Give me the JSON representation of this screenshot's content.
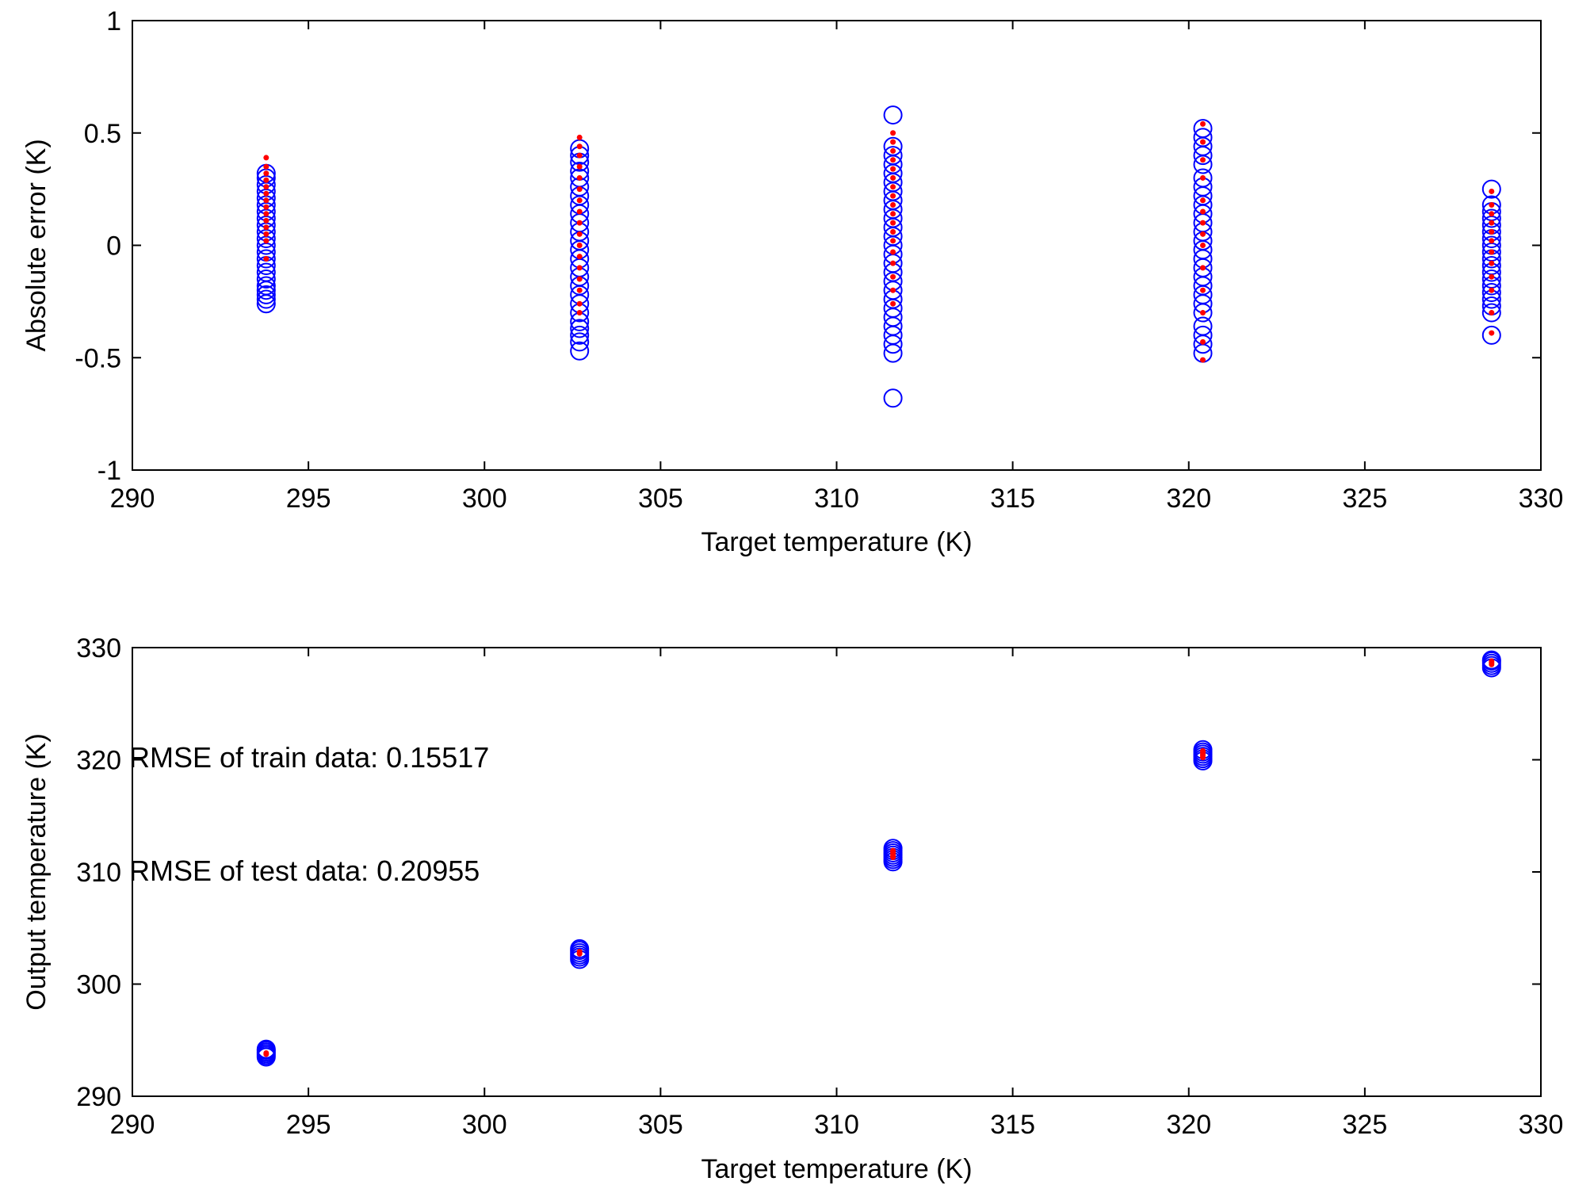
{
  "chart_data": [
    {
      "type": "scatter",
      "title": "",
      "xlabel": "Target temperature (K)",
      "ylabel": "Absolute error (K)",
      "xlim": [
        290,
        330
      ],
      "ylim": [
        -1,
        1
      ],
      "xticks": [
        "290",
        "295",
        "300",
        "305",
        "310",
        "315",
        "320",
        "325",
        "330"
      ],
      "yticks": [
        "1",
        "0.5",
        "0",
        "-0.5",
        "-1"
      ],
      "grid": false,
      "legend": "none",
      "annotations": [],
      "series": [
        {
          "marker": "open-circle",
          "color": "#0000ff",
          "points": [
            [
              293.8,
              -0.26
            ],
            [
              293.8,
              -0.24
            ],
            [
              293.8,
              -0.22
            ],
            [
              293.8,
              -0.2
            ],
            [
              293.8,
              -0.18
            ],
            [
              293.8,
              -0.15
            ],
            [
              293.8,
              -0.12
            ],
            [
              293.8,
              -0.09
            ],
            [
              293.8,
              -0.06
            ],
            [
              293.8,
              -0.03
            ],
            [
              293.8,
              0.0
            ],
            [
              293.8,
              0.03
            ],
            [
              293.8,
              0.06
            ],
            [
              293.8,
              0.09
            ],
            [
              293.8,
              0.12
            ],
            [
              293.8,
              0.15
            ],
            [
              293.8,
              0.18
            ],
            [
              293.8,
              0.21
            ],
            [
              293.8,
              0.24
            ],
            [
              293.8,
              0.27
            ],
            [
              293.8,
              0.3
            ],
            [
              293.8,
              0.32
            ],
            [
              302.7,
              -0.47
            ],
            [
              302.7,
              -0.43
            ],
            [
              302.7,
              -0.4
            ],
            [
              302.7,
              -0.37
            ],
            [
              302.7,
              -0.34
            ],
            [
              302.7,
              -0.3
            ],
            [
              302.7,
              -0.26
            ],
            [
              302.7,
              -0.22
            ],
            [
              302.7,
              -0.18
            ],
            [
              302.7,
              -0.14
            ],
            [
              302.7,
              -0.1
            ],
            [
              302.7,
              -0.06
            ],
            [
              302.7,
              -0.02
            ],
            [
              302.7,
              0.02
            ],
            [
              302.7,
              0.06
            ],
            [
              302.7,
              0.1
            ],
            [
              302.7,
              0.14
            ],
            [
              302.7,
              0.18
            ],
            [
              302.7,
              0.22
            ],
            [
              302.7,
              0.26
            ],
            [
              302.7,
              0.3
            ],
            [
              302.7,
              0.33
            ],
            [
              302.7,
              0.37
            ],
            [
              302.7,
              0.4
            ],
            [
              302.7,
              0.43
            ],
            [
              311.6,
              -0.68
            ],
            [
              311.6,
              -0.48
            ],
            [
              311.6,
              -0.44
            ],
            [
              311.6,
              -0.4
            ],
            [
              311.6,
              -0.36
            ],
            [
              311.6,
              -0.32
            ],
            [
              311.6,
              -0.28
            ],
            [
              311.6,
              -0.24
            ],
            [
              311.6,
              -0.2
            ],
            [
              311.6,
              -0.16
            ],
            [
              311.6,
              -0.12
            ],
            [
              311.6,
              -0.08
            ],
            [
              311.6,
              -0.04
            ],
            [
              311.6,
              0.0
            ],
            [
              311.6,
              0.04
            ],
            [
              311.6,
              0.08
            ],
            [
              311.6,
              0.12
            ],
            [
              311.6,
              0.16
            ],
            [
              311.6,
              0.2
            ],
            [
              311.6,
              0.24
            ],
            [
              311.6,
              0.28
            ],
            [
              311.6,
              0.32
            ],
            [
              311.6,
              0.36
            ],
            [
              311.6,
              0.4
            ],
            [
              311.6,
              0.44
            ],
            [
              311.6,
              0.58
            ],
            [
              320.4,
              -0.48
            ],
            [
              320.4,
              -0.44
            ],
            [
              320.4,
              -0.4
            ],
            [
              320.4,
              -0.36
            ],
            [
              320.4,
              -0.3
            ],
            [
              320.4,
              -0.26
            ],
            [
              320.4,
              -0.22
            ],
            [
              320.4,
              -0.18
            ],
            [
              320.4,
              -0.14
            ],
            [
              320.4,
              -0.1
            ],
            [
              320.4,
              -0.06
            ],
            [
              320.4,
              -0.02
            ],
            [
              320.4,
              0.02
            ],
            [
              320.4,
              0.06
            ],
            [
              320.4,
              0.1
            ],
            [
              320.4,
              0.14
            ],
            [
              320.4,
              0.18
            ],
            [
              320.4,
              0.22
            ],
            [
              320.4,
              0.26
            ],
            [
              320.4,
              0.3
            ],
            [
              320.4,
              0.36
            ],
            [
              320.4,
              0.4
            ],
            [
              320.4,
              0.44
            ],
            [
              320.4,
              0.48
            ],
            [
              320.4,
              0.52
            ],
            [
              328.6,
              -0.4
            ],
            [
              328.6,
              -0.3
            ],
            [
              328.6,
              -0.27
            ],
            [
              328.6,
              -0.24
            ],
            [
              328.6,
              -0.21
            ],
            [
              328.6,
              -0.18
            ],
            [
              328.6,
              -0.15
            ],
            [
              328.6,
              -0.12
            ],
            [
              328.6,
              -0.09
            ],
            [
              328.6,
              -0.06
            ],
            [
              328.6,
              -0.03
            ],
            [
              328.6,
              0.0
            ],
            [
              328.6,
              0.03
            ],
            [
              328.6,
              0.06
            ],
            [
              328.6,
              0.09
            ],
            [
              328.6,
              0.12
            ],
            [
              328.6,
              0.15
            ],
            [
              328.6,
              0.18
            ],
            [
              328.6,
              0.25
            ]
          ]
        },
        {
          "marker": "dot",
          "color": "#ff0000",
          "points": [
            [
              293.8,
              -0.06
            ],
            [
              293.8,
              0.02
            ],
            [
              293.8,
              0.05
            ],
            [
              293.8,
              0.08
            ],
            [
              293.8,
              0.11
            ],
            [
              293.8,
              0.14
            ],
            [
              293.8,
              0.17
            ],
            [
              293.8,
              0.2
            ],
            [
              293.8,
              0.23
            ],
            [
              293.8,
              0.26
            ],
            [
              293.8,
              0.29
            ],
            [
              293.8,
              0.32
            ],
            [
              293.8,
              0.35
            ],
            [
              293.8,
              0.39
            ],
            [
              302.7,
              -0.3
            ],
            [
              302.7,
              -0.26
            ],
            [
              302.7,
              -0.2
            ],
            [
              302.7,
              -0.15
            ],
            [
              302.7,
              -0.1
            ],
            [
              302.7,
              -0.05
            ],
            [
              302.7,
              0.0
            ],
            [
              302.7,
              0.05
            ],
            [
              302.7,
              0.1
            ],
            [
              302.7,
              0.15
            ],
            [
              302.7,
              0.2
            ],
            [
              302.7,
              0.25
            ],
            [
              302.7,
              0.3
            ],
            [
              302.7,
              0.35
            ],
            [
              302.7,
              0.4
            ],
            [
              302.7,
              0.44
            ],
            [
              302.7,
              0.48
            ],
            [
              311.6,
              -0.26
            ],
            [
              311.6,
              -0.2
            ],
            [
              311.6,
              -0.14
            ],
            [
              311.6,
              -0.08
            ],
            [
              311.6,
              -0.03
            ],
            [
              311.6,
              0.02
            ],
            [
              311.6,
              0.06
            ],
            [
              311.6,
              0.1
            ],
            [
              311.6,
              0.14
            ],
            [
              311.6,
              0.18
            ],
            [
              311.6,
              0.22
            ],
            [
              311.6,
              0.26
            ],
            [
              311.6,
              0.3
            ],
            [
              311.6,
              0.34
            ],
            [
              311.6,
              0.38
            ],
            [
              311.6,
              0.42
            ],
            [
              311.6,
              0.46
            ],
            [
              311.6,
              0.5
            ],
            [
              320.4,
              -0.51
            ],
            [
              320.4,
              -0.43
            ],
            [
              320.4,
              -0.3
            ],
            [
              320.4,
              -0.2
            ],
            [
              320.4,
              -0.1
            ],
            [
              320.4,
              0.0
            ],
            [
              320.4,
              0.05
            ],
            [
              320.4,
              0.1
            ],
            [
              320.4,
              0.15
            ],
            [
              320.4,
              0.2
            ],
            [
              320.4,
              0.3
            ],
            [
              320.4,
              0.38
            ],
            [
              320.4,
              0.46
            ],
            [
              320.4,
              0.54
            ],
            [
              328.6,
              -0.39
            ],
            [
              328.6,
              -0.3
            ],
            [
              328.6,
              -0.2
            ],
            [
              328.6,
              -0.14
            ],
            [
              328.6,
              -0.08
            ],
            [
              328.6,
              -0.03
            ],
            [
              328.6,
              0.02
            ],
            [
              328.6,
              0.06
            ],
            [
              328.6,
              0.1
            ],
            [
              328.6,
              0.14
            ],
            [
              328.6,
              0.18
            ],
            [
              328.6,
              0.24
            ]
          ]
        }
      ]
    },
    {
      "type": "scatter",
      "title": "",
      "xlabel": "Target temperature (K)",
      "ylabel": "Output temperature (K)",
      "xlim": [
        290,
        330
      ],
      "ylim": [
        290,
        330
      ],
      "xticks": [
        "290",
        "295",
        "300",
        "305",
        "310",
        "315",
        "320",
        "325",
        "330"
      ],
      "yticks": [
        "330",
        "320",
        "310",
        "300",
        "290"
      ],
      "grid": false,
      "legend": "none",
      "annotations": [
        "RMSE of train data: 0.15517",
        "RMSE of test data: 0.20955"
      ],
      "series": [
        {
          "marker": "open-circle",
          "color": "#0000ff",
          "points": [
            [
              293.8,
              293.5
            ],
            [
              293.8,
              293.65
            ],
            [
              293.8,
              293.8
            ],
            [
              293.8,
              293.95
            ],
            [
              293.8,
              294.1
            ],
            [
              293.8,
              294.2
            ],
            [
              302.7,
              302.2
            ],
            [
              302.7,
              302.4
            ],
            [
              302.7,
              302.6
            ],
            [
              302.7,
              302.8
            ],
            [
              302.7,
              303.0
            ],
            [
              302.7,
              303.15
            ],
            [
              311.6,
              310.9
            ],
            [
              311.6,
              311.1
            ],
            [
              311.6,
              311.3
            ],
            [
              311.6,
              311.5
            ],
            [
              311.6,
              311.7
            ],
            [
              311.6,
              311.9
            ],
            [
              311.6,
              312.1
            ],
            [
              320.4,
              319.9
            ],
            [
              320.4,
              320.1
            ],
            [
              320.4,
              320.3
            ],
            [
              320.4,
              320.5
            ],
            [
              320.4,
              320.7
            ],
            [
              320.4,
              320.9
            ],
            [
              328.6,
              328.2
            ],
            [
              328.6,
              328.4
            ],
            [
              328.6,
              328.6
            ],
            [
              328.6,
              328.8
            ],
            [
              328.6,
              328.9
            ]
          ]
        },
        {
          "marker": "dot",
          "color": "#ff0000",
          "points": [
            [
              293.8,
              293.75
            ],
            [
              293.8,
              293.85
            ],
            [
              302.7,
              302.7
            ],
            [
              302.7,
              302.8
            ],
            [
              302.7,
              302.9
            ],
            [
              311.6,
              311.3
            ],
            [
              311.6,
              311.45
            ],
            [
              311.6,
              311.6
            ],
            [
              311.6,
              311.75
            ],
            [
              311.6,
              311.9
            ],
            [
              320.4,
              320.2
            ],
            [
              320.4,
              320.35
            ],
            [
              320.4,
              320.5
            ],
            [
              320.4,
              320.65
            ],
            [
              320.4,
              320.8
            ],
            [
              328.6,
              328.5
            ],
            [
              328.6,
              328.65
            ],
            [
              328.6,
              328.8
            ]
          ]
        }
      ]
    }
  ]
}
